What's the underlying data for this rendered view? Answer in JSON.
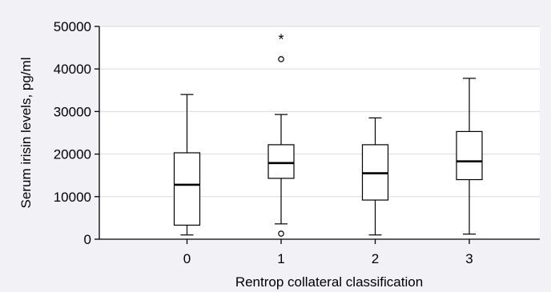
{
  "chart_data": {
    "type": "box",
    "title": "",
    "xlabel": "Rentrop collateral classification",
    "ylabel": "Serum irisin levels, pg/ml",
    "ylim": [
      0,
      50000
    ],
    "yticks": [
      0,
      10000,
      20000,
      30000,
      40000,
      50000
    ],
    "ytick_labels": [
      "0",
      "10000",
      "20000",
      "30000",
      "40000",
      "50000"
    ],
    "grid": true,
    "categories": [
      "0",
      "1",
      "2",
      "3"
    ],
    "boxes": [
      {
        "category": "0",
        "whisker_low": 1000,
        "q1": 3300,
        "median": 12800,
        "q3": 20300,
        "whisker_high": 34000,
        "outliers": [],
        "extremes": []
      },
      {
        "category": "1",
        "whisker_low": 3600,
        "q1": 14300,
        "median": 17900,
        "q3": 22200,
        "whisker_high": 29300,
        "outliers": [
          1300,
          42300
        ],
        "extremes": [
          47500
        ]
      },
      {
        "category": "2",
        "whisker_low": 1000,
        "q1": 9200,
        "median": 15500,
        "q3": 22200,
        "whisker_high": 28500,
        "outliers": [],
        "extremes": []
      },
      {
        "category": "3",
        "whisker_low": 1200,
        "q1": 14000,
        "median": 18300,
        "q3": 25300,
        "whisker_high": 37800,
        "outliers": [],
        "extremes": []
      }
    ],
    "colors": {
      "background": "#f2f1f6",
      "plot_background": "#ffffff",
      "grid": "#d9d9d9",
      "box": "#000000"
    },
    "extreme_marker": "*",
    "outlier_marker": "circle"
  }
}
